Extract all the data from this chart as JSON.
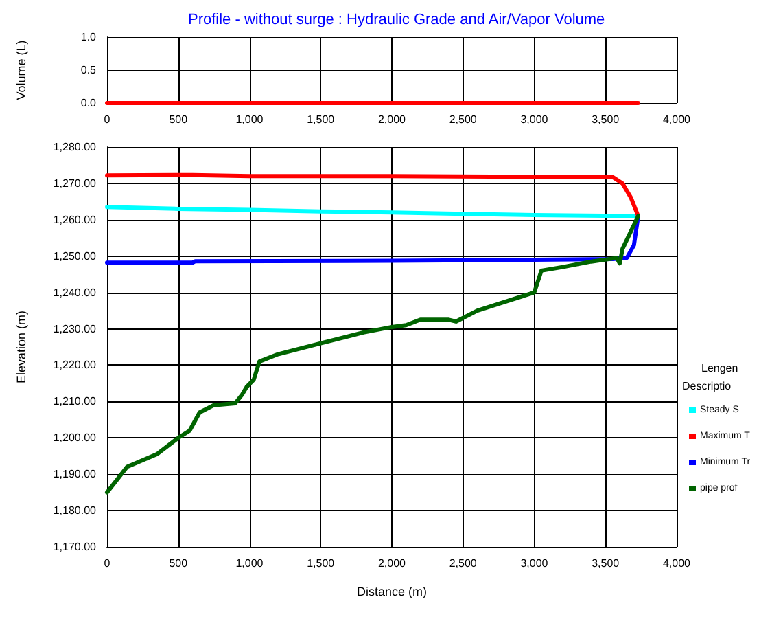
{
  "chart_data": [
    {
      "type": "line",
      "title": "Profile - without surge : Hydraulic Grade and Air/Vapor Volume",
      "ylabel": "Volume (L)",
      "xlim": [
        0,
        4000
      ],
      "xticks": [
        {
          "value": 0,
          "label": "0"
        },
        500,
        {
          "value": 1000,
          "label": "1,000"
        },
        {
          "value": 1500,
          "label": "1,500"
        },
        {
          "value": 2000,
          "label": "2,000"
        },
        {
          "value": 2500,
          "label": "2,500"
        },
        {
          "value": 3000,
          "label": "3,000"
        },
        {
          "value": 3500,
          "label": "3,500"
        },
        {
          "value": 4000,
          "label": "4,000"
        }
      ],
      "ylim": [
        0,
        1
      ],
      "yticks": [
        {
          "value": 0,
          "label": "0.0"
        },
        {
          "value": 0.5,
          "label": "0.5"
        },
        {
          "value": 1,
          "label": "1.0"
        }
      ],
      "grid": true,
      "legend": false,
      "marker": "none",
      "series": [
        {
          "color": "#ff0000",
          "x": [
            0,
            3730
          ],
          "values": [
            0,
            0
          ]
        }
      ]
    },
    {
      "type": "line",
      "xlabel": "Distance (m)",
      "ylabel": "Elevation (m)",
      "xlim": [
        0,
        4000
      ],
      "xticks": [
        {
          "value": 0,
          "label": "0"
        },
        500,
        {
          "value": 1000,
          "label": "1,000"
        },
        {
          "value": 1500,
          "label": "1,500"
        },
        {
          "value": 2000,
          "label": "2,000"
        },
        {
          "value": 2500,
          "label": "2,500"
        },
        {
          "value": 3000,
          "label": "3,000"
        },
        {
          "value": 3500,
          "label": "3,500"
        },
        {
          "value": 4000,
          "label": "4,000"
        }
      ],
      "ylim": [
        1170,
        1280
      ],
      "yticks": [
        {
          "value": 1170,
          "label": "1,170.00"
        },
        {
          "value": 1180,
          "label": "1,180.00"
        },
        {
          "value": 1190,
          "label": "1,190.00"
        },
        {
          "value": 1200,
          "label": "1,200.00"
        },
        {
          "value": 1210,
          "label": "1,210.00"
        },
        {
          "value": 1220,
          "label": "1,220.00"
        },
        {
          "value": 1230,
          "label": "1,230.00"
        },
        {
          "value": 1240,
          "label": "1,240.00"
        },
        {
          "value": 1250,
          "label": "1,250.00"
        },
        {
          "value": 1260,
          "label": "1,260.00"
        },
        {
          "value": 1270,
          "label": "1,270.00"
        },
        {
          "value": 1280,
          "label": "1,280.00"
        }
      ],
      "grid": true,
      "legend": "right",
      "legend_title": "Lengen",
      "annotations": [
        "Descriptio"
      ],
      "marker": "none",
      "series": [
        {
          "name": "Steady S",
          "color": "#00ffff",
          "x": [
            0,
            500,
            1000,
            1500,
            2000,
            2500,
            3000,
            3730
          ],
          "values": [
            1263.5,
            1263,
            1262.7,
            1262.3,
            1262,
            1261.6,
            1261.3,
            1261
          ]
        },
        {
          "name": "Maximum T",
          "color": "#ff0000",
          "x": [
            0,
            600,
            1000,
            2000,
            3000,
            3550,
            3620,
            3680,
            3730
          ],
          "values": [
            1272.2,
            1272.3,
            1272,
            1272,
            1271.8,
            1271.8,
            1270,
            1266,
            1261
          ]
        },
        {
          "name": "Minimum Tr",
          "color": "#0000ff",
          "x": [
            0,
            600,
            620,
            2000,
            3000,
            3550,
            3650,
            3700,
            3730
          ],
          "values": [
            1248.2,
            1248.2,
            1248.6,
            1248.7,
            1249,
            1249.2,
            1249.5,
            1253,
            1261
          ]
        },
        {
          "name": "pipe prof",
          "color": "#006400",
          "x": [
            0,
            140,
            350,
            500,
            580,
            650,
            750,
            900,
            950,
            980,
            1030,
            1070,
            1200,
            1500,
            1800,
            2000,
            2100,
            2200,
            2400,
            2450,
            2600,
            2800,
            3000,
            3050,
            3200,
            3400,
            3580,
            3600,
            3620,
            3730
          ],
          "values": [
            1185,
            1192,
            1195.5,
            1200,
            1202,
            1207,
            1209,
            1209.5,
            1212,
            1214,
            1216,
            1221,
            1223,
            1226,
            1229,
            1230.5,
            1231,
            1232.5,
            1232.5,
            1232,
            1235,
            1237.5,
            1240,
            1246,
            1247,
            1248.5,
            1249.5,
            1248,
            1252,
            1261
          ]
        }
      ]
    }
  ]
}
